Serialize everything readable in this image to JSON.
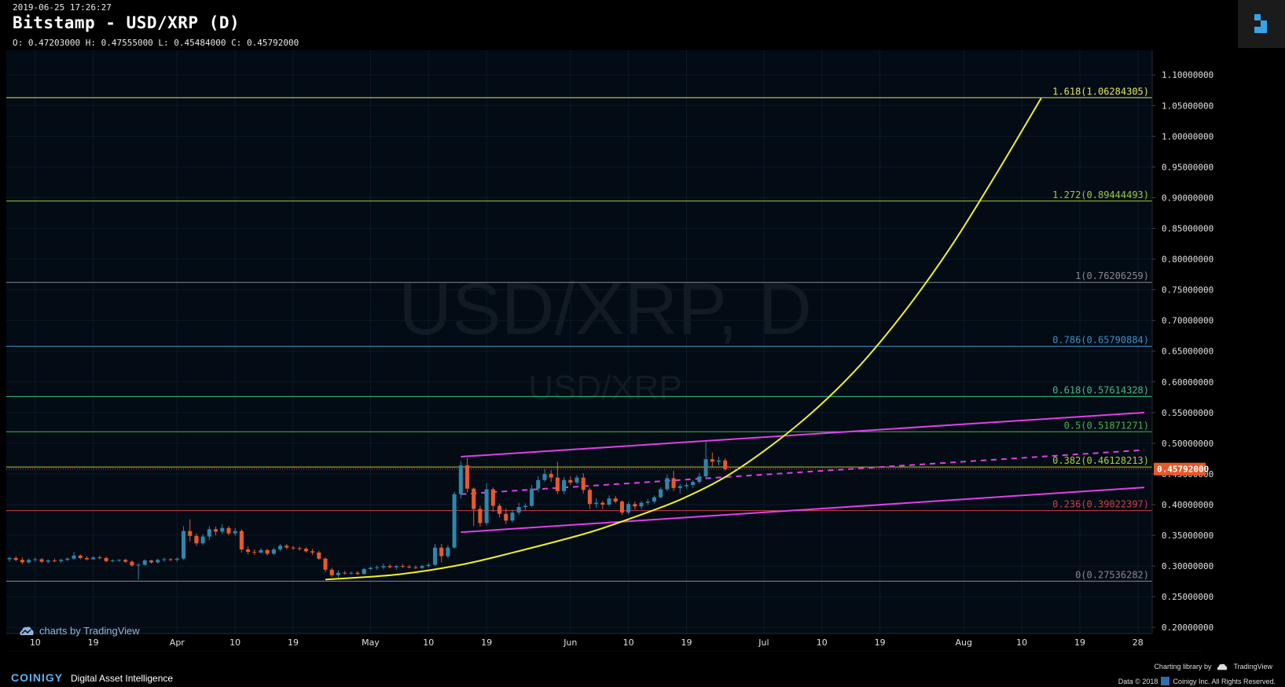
{
  "header": {
    "timestamp": "2019-06-25 17:26:27",
    "title": "Bitstamp - USD/XRP (D)",
    "ohlc": "O: 0.47203000 H: 0.47555000 L: 0.45484000 C: 0.45792000"
  },
  "watermark": {
    "big": "USD/XRP, D",
    "small": "USD/XRP"
  },
  "tradingview_badge": "charts by TradingView",
  "footer": {
    "brand": "COINIGY",
    "tagline": "Digital Asset Intelligence",
    "charting": "Charting library by",
    "tv": "TradingView",
    "copyright": "Data © 2018",
    "company": "Coinigy Inc. All Rights Reserved."
  },
  "icons": {
    "brand_logo": "coinigy-logo-icon",
    "tv_cloud": "tradingview-cloud-icon"
  },
  "colors": {
    "background": "#000000",
    "up": "#2e86ab",
    "down": "#e8592a",
    "channel": "#e040e8",
    "parabola": "#f2f026",
    "price_tag": "#e8592a"
  },
  "chart_data": {
    "type": "candlestick",
    "ylim": [
      0.19,
      1.14
    ],
    "y_ticks": [
      "1.10000000",
      "1.05000000",
      "1.00000000",
      "0.95000000",
      "0.90000000",
      "0.85000000",
      "0.80000000",
      "0.75000000",
      "0.70000000",
      "0.65000000",
      "0.60000000",
      "0.55000000",
      "0.50000000",
      "0.45000000",
      "0.40000000",
      "0.35000000",
      "0.30000000",
      "0.25000000",
      "0.20000000"
    ],
    "x_ticks": [
      {
        "date": "2019-03-10",
        "label": "10"
      },
      {
        "date": "2019-03-19",
        "label": "19"
      },
      {
        "date": "2019-04-01",
        "label": "Apr"
      },
      {
        "date": "2019-04-10",
        "label": "10"
      },
      {
        "date": "2019-04-19",
        "label": "19"
      },
      {
        "date": "2019-05-01",
        "label": "May"
      },
      {
        "date": "2019-05-10",
        "label": "10"
      },
      {
        "date": "2019-05-19",
        "label": "19"
      },
      {
        "date": "2019-06-01",
        "label": "Jun"
      },
      {
        "date": "2019-06-10",
        "label": "10"
      },
      {
        "date": "2019-06-19",
        "label": "19"
      },
      {
        "date": "2019-07-01",
        "label": "Jul"
      },
      {
        "date": "2019-07-10",
        "label": "10"
      },
      {
        "date": "2019-07-19",
        "label": "19"
      },
      {
        "date": "2019-08-01",
        "label": "Aug"
      },
      {
        "date": "2019-08-10",
        "label": "10"
      },
      {
        "date": "2019-08-19",
        "label": "19"
      },
      {
        "date": "2019-08-28",
        "label": "28"
      }
    ],
    "x_start": "2019-03-06",
    "x_end": "2019-08-29",
    "last_price": 0.45792,
    "last_price_label": "0.45792000",
    "fib_levels": [
      {
        "ratio": "1.618",
        "price": 1.06284305,
        "label": "1.618(1.06284305)",
        "color": "#e6e35a"
      },
      {
        "ratio": "1.272",
        "price": 0.89444493,
        "label": "1.272(0.89444493)",
        "color": "#9ccc3c"
      },
      {
        "ratio": "1",
        "price": 0.76206259,
        "label": "1(0.76206259)",
        "color": "#8a8a8a"
      },
      {
        "ratio": "0.786",
        "price": 0.65790884,
        "label": "0.786(0.65790884)",
        "color": "#3a8fc8"
      },
      {
        "ratio": "0.618",
        "price": 0.57614328,
        "label": "0.618(0.57614328)",
        "color": "#3fbf7f"
      },
      {
        "ratio": "0.5",
        "price": 0.51871271,
        "label": "0.5(0.51871271)",
        "color": "#4caf50"
      },
      {
        "ratio": "0.382",
        "price": 0.46128213,
        "label": "0.382(0.46128213)",
        "color": "#a8d13c"
      },
      {
        "ratio": "0.236",
        "price": 0.39022397,
        "label": "0.236(0.39022397)",
        "color": "#d04040"
      },
      {
        "ratio": "0",
        "price": 0.27536282,
        "label": "0(0.27536282)",
        "color": "#8a8a8a"
      }
    ],
    "channel": {
      "upper": {
        "from": [
          "2019-05-15",
          0.478
        ],
        "to": [
          "2019-08-29",
          0.55
        ]
      },
      "lower": {
        "from": [
          "2019-05-15",
          0.355
        ],
        "to": [
          "2019-08-29",
          0.428
        ]
      },
      "mid": {
        "from": [
          "2019-05-15",
          0.417
        ],
        "to": [
          "2019-08-29",
          0.489
        ]
      }
    },
    "parabola": [
      [
        "2019-04-24",
        0.278
      ],
      [
        "2019-05-05",
        0.286
      ],
      [
        "2019-05-15",
        0.302
      ],
      [
        "2019-05-25",
        0.327
      ],
      [
        "2019-06-04",
        0.355
      ],
      [
        "2019-06-11",
        0.38
      ],
      [
        "2019-06-18",
        0.408
      ],
      [
        "2019-06-25",
        0.445
      ],
      [
        "2019-07-02",
        0.495
      ],
      [
        "2019-07-09",
        0.555
      ],
      [
        "2019-07-16",
        0.628
      ],
      [
        "2019-07-23",
        0.717
      ],
      [
        "2019-07-30",
        0.82
      ],
      [
        "2019-08-06",
        0.938
      ],
      [
        "2019-08-13",
        1.062
      ]
    ],
    "candles": [
      [
        "2019-03-06",
        0.311,
        0.315,
        0.307,
        0.313
      ],
      [
        "2019-03-07",
        0.313,
        0.316,
        0.308,
        0.31
      ],
      [
        "2019-03-08",
        0.31,
        0.314,
        0.303,
        0.306
      ],
      [
        "2019-03-09",
        0.306,
        0.312,
        0.304,
        0.31
      ],
      [
        "2019-03-10",
        0.31,
        0.314,
        0.307,
        0.311
      ],
      [
        "2019-03-11",
        0.311,
        0.313,
        0.305,
        0.307
      ],
      [
        "2019-03-12",
        0.307,
        0.311,
        0.304,
        0.309
      ],
      [
        "2019-03-13",
        0.309,
        0.312,
        0.306,
        0.308
      ],
      [
        "2019-03-14",
        0.308,
        0.312,
        0.305,
        0.31
      ],
      [
        "2019-03-15",
        0.31,
        0.314,
        0.308,
        0.312
      ],
      [
        "2019-03-16",
        0.312,
        0.323,
        0.31,
        0.317
      ],
      [
        "2019-03-17",
        0.317,
        0.319,
        0.311,
        0.313
      ],
      [
        "2019-03-18",
        0.313,
        0.316,
        0.309,
        0.311
      ],
      [
        "2019-03-19",
        0.311,
        0.316,
        0.31,
        0.314
      ],
      [
        "2019-03-20",
        0.314,
        0.317,
        0.311,
        0.313
      ],
      [
        "2019-03-21",
        0.313,
        0.315,
        0.306,
        0.308
      ],
      [
        "2019-03-22",
        0.308,
        0.311,
        0.306,
        0.309
      ],
      [
        "2019-03-23",
        0.309,
        0.311,
        0.307,
        0.31
      ],
      [
        "2019-03-24",
        0.31,
        0.312,
        0.305,
        0.307
      ],
      [
        "2019-03-25",
        0.307,
        0.309,
        0.299,
        0.301
      ],
      [
        "2019-03-26",
        0.301,
        0.305,
        0.278,
        0.302
      ],
      [
        "2019-03-27",
        0.302,
        0.311,
        0.3,
        0.309
      ],
      [
        "2019-03-28",
        0.309,
        0.31,
        0.304,
        0.306
      ],
      [
        "2019-03-29",
        0.306,
        0.312,
        0.304,
        0.31
      ],
      [
        "2019-03-30",
        0.31,
        0.314,
        0.307,
        0.311
      ],
      [
        "2019-03-31",
        0.311,
        0.313,
        0.308,
        0.31
      ],
      [
        "2019-04-01",
        0.31,
        0.314,
        0.307,
        0.312
      ],
      [
        "2019-04-02",
        0.312,
        0.365,
        0.31,
        0.357
      ],
      [
        "2019-04-03",
        0.357,
        0.376,
        0.34,
        0.349
      ],
      [
        "2019-04-04",
        0.349,
        0.353,
        0.333,
        0.337
      ],
      [
        "2019-04-05",
        0.337,
        0.352,
        0.334,
        0.348
      ],
      [
        "2019-04-06",
        0.348,
        0.365,
        0.342,
        0.36
      ],
      [
        "2019-04-07",
        0.36,
        0.364,
        0.35,
        0.356
      ],
      [
        "2019-04-08",
        0.356,
        0.368,
        0.352,
        0.362
      ],
      [
        "2019-04-09",
        0.362,
        0.365,
        0.35,
        0.353
      ],
      [
        "2019-04-10",
        0.353,
        0.362,
        0.349,
        0.357
      ],
      [
        "2019-04-11",
        0.357,
        0.36,
        0.322,
        0.327
      ],
      [
        "2019-04-12",
        0.327,
        0.332,
        0.319,
        0.323
      ],
      [
        "2019-04-13",
        0.323,
        0.327,
        0.318,
        0.322
      ],
      [
        "2019-04-14",
        0.322,
        0.329,
        0.32,
        0.326
      ],
      [
        "2019-04-15",
        0.326,
        0.328,
        0.317,
        0.32
      ],
      [
        "2019-04-16",
        0.32,
        0.33,
        0.318,
        0.327
      ],
      [
        "2019-04-17",
        0.327,
        0.336,
        0.324,
        0.333
      ],
      [
        "2019-04-18",
        0.333,
        0.336,
        0.327,
        0.33
      ],
      [
        "2019-04-19",
        0.33,
        0.333,
        0.326,
        0.329
      ],
      [
        "2019-04-20",
        0.329,
        0.332,
        0.325,
        0.328
      ],
      [
        "2019-04-21",
        0.328,
        0.331,
        0.322,
        0.324
      ],
      [
        "2019-04-22",
        0.324,
        0.328,
        0.318,
        0.322
      ],
      [
        "2019-04-23",
        0.322,
        0.325,
        0.31,
        0.312
      ],
      [
        "2019-04-24",
        0.312,
        0.314,
        0.29,
        0.294
      ],
      [
        "2019-04-25",
        0.294,
        0.297,
        0.282,
        0.285
      ],
      [
        "2019-04-26",
        0.285,
        0.293,
        0.281,
        0.289
      ],
      [
        "2019-04-27",
        0.289,
        0.292,
        0.286,
        0.288
      ],
      [
        "2019-04-28",
        0.288,
        0.291,
        0.286,
        0.289
      ],
      [
        "2019-04-29",
        0.289,
        0.292,
        0.285,
        0.287
      ],
      [
        "2019-04-30",
        0.287,
        0.297,
        0.286,
        0.295
      ],
      [
        "2019-05-01",
        0.295,
        0.299,
        0.293,
        0.297
      ],
      [
        "2019-05-02",
        0.297,
        0.301,
        0.294,
        0.298
      ],
      [
        "2019-05-03",
        0.298,
        0.304,
        0.295,
        0.3
      ],
      [
        "2019-05-04",
        0.3,
        0.303,
        0.296,
        0.298
      ],
      [
        "2019-05-05",
        0.298,
        0.302,
        0.294,
        0.3
      ],
      [
        "2019-05-06",
        0.3,
        0.303,
        0.297,
        0.299
      ],
      [
        "2019-05-07",
        0.299,
        0.302,
        0.296,
        0.298
      ],
      [
        "2019-05-08",
        0.298,
        0.301,
        0.295,
        0.297
      ],
      [
        "2019-05-09",
        0.297,
        0.302,
        0.295,
        0.3
      ],
      [
        "2019-05-10",
        0.3,
        0.305,
        0.297,
        0.302
      ],
      [
        "2019-05-11",
        0.302,
        0.336,
        0.3,
        0.33
      ],
      [
        "2019-05-12",
        0.33,
        0.336,
        0.306,
        0.316
      ],
      [
        "2019-05-13",
        0.316,
        0.334,
        0.313,
        0.33
      ],
      [
        "2019-05-14",
        0.33,
        0.421,
        0.328,
        0.417
      ],
      [
        "2019-05-15",
        0.417,
        0.471,
        0.41,
        0.464
      ],
      [
        "2019-05-16",
        0.464,
        0.476,
        0.42,
        0.426
      ],
      [
        "2019-05-17",
        0.426,
        0.428,
        0.365,
        0.393
      ],
      [
        "2019-05-18",
        0.393,
        0.398,
        0.364,
        0.37
      ],
      [
        "2019-05-19",
        0.37,
        0.435,
        0.366,
        0.425
      ],
      [
        "2019-05-20",
        0.425,
        0.428,
        0.388,
        0.398
      ],
      [
        "2019-05-21",
        0.398,
        0.402,
        0.379,
        0.385
      ],
      [
        "2019-05-22",
        0.385,
        0.394,
        0.368,
        0.374
      ],
      [
        "2019-05-23",
        0.374,
        0.392,
        0.371,
        0.387
      ],
      [
        "2019-05-24",
        0.387,
        0.403,
        0.383,
        0.396
      ],
      [
        "2019-05-25",
        0.396,
        0.402,
        0.391,
        0.398
      ],
      [
        "2019-05-26",
        0.398,
        0.432,
        0.396,
        0.426
      ],
      [
        "2019-05-27",
        0.426,
        0.446,
        0.42,
        0.44
      ],
      [
        "2019-05-28",
        0.44,
        0.458,
        0.437,
        0.45
      ],
      [
        "2019-05-29",
        0.45,
        0.456,
        0.437,
        0.444
      ],
      [
        "2019-05-30",
        0.444,
        0.47,
        0.417,
        0.422
      ],
      [
        "2019-05-31",
        0.422,
        0.445,
        0.417,
        0.44
      ],
      [
        "2019-06-01",
        0.44,
        0.446,
        0.432,
        0.436
      ],
      [
        "2019-06-02",
        0.436,
        0.448,
        0.433,
        0.444
      ],
      [
        "2019-06-03",
        0.444,
        0.451,
        0.418,
        0.424
      ],
      [
        "2019-06-04",
        0.424,
        0.427,
        0.393,
        0.401
      ],
      [
        "2019-06-05",
        0.401,
        0.41,
        0.395,
        0.403
      ],
      [
        "2019-06-06",
        0.403,
        0.406,
        0.393,
        0.4
      ],
      [
        "2019-06-07",
        0.4,
        0.415,
        0.398,
        0.41
      ],
      [
        "2019-06-08",
        0.41,
        0.414,
        0.402,
        0.405
      ],
      [
        "2019-06-09",
        0.405,
        0.407,
        0.383,
        0.387
      ],
      [
        "2019-06-10",
        0.387,
        0.404,
        0.384,
        0.401
      ],
      [
        "2019-06-11",
        0.401,
        0.405,
        0.392,
        0.397
      ],
      [
        "2019-06-12",
        0.397,
        0.406,
        0.393,
        0.403
      ],
      [
        "2019-06-13",
        0.403,
        0.409,
        0.399,
        0.405
      ],
      [
        "2019-06-14",
        0.405,
        0.415,
        0.402,
        0.412
      ],
      [
        "2019-06-15",
        0.412,
        0.428,
        0.41,
        0.425
      ],
      [
        "2019-06-16",
        0.425,
        0.449,
        0.422,
        0.443
      ],
      [
        "2019-06-17",
        0.443,
        0.455,
        0.422,
        0.427
      ],
      [
        "2019-06-18",
        0.427,
        0.434,
        0.418,
        0.43
      ],
      [
        "2019-06-19",
        0.43,
        0.436,
        0.426,
        0.432
      ],
      [
        "2019-06-20",
        0.432,
        0.44,
        0.427,
        0.437
      ],
      [
        "2019-06-21",
        0.437,
        0.452,
        0.434,
        0.446
      ],
      [
        "2019-06-22",
        0.446,
        0.502,
        0.442,
        0.474
      ],
      [
        "2019-06-23",
        0.474,
        0.485,
        0.462,
        0.47
      ],
      [
        "2019-06-24",
        0.47,
        0.478,
        0.464,
        0.472
      ],
      [
        "2019-06-25",
        0.472,
        0.4756,
        0.4548,
        0.4579
      ]
    ]
  }
}
